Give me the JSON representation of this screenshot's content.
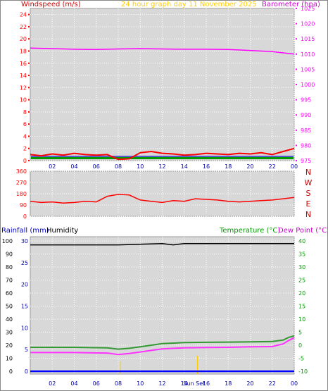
{
  "header": {
    "windspeed": "Windspeed (m/s)",
    "title": "24 hour graph day   11 November 2025",
    "barometer": "Barometer (hpa)"
  },
  "lower_header": {
    "rainfall": "Rainfall (mm)",
    "humidity": "Humidity",
    "temperature": "Temperature (°C)",
    "dewpoint": "Dew Point (°C)"
  },
  "colors": {
    "wind": "#ff0000",
    "gust_band": "#0000cc",
    "avg_band": "#009900",
    "pressure": "#ff00ff",
    "direction": "#ff0000",
    "rain": "#0000ff",
    "humidity": "#000000",
    "temperature": "#339933",
    "dewpoint": "#ff33ff",
    "axis_rain": "#0000aa",
    "axis_temp": "#009900",
    "sun": "#ffcc00"
  },
  "chart_data": [
    {
      "type": "line",
      "panel": "wind-pressure",
      "x_labels": [
        "02",
        "04",
        "06",
        "08",
        "10",
        "12",
        "14",
        "16",
        "18",
        "20",
        "22",
        "00"
      ],
      "left_axis": {
        "label": "Windspeed (m/s)",
        "range": [
          0,
          25
        ],
        "ticks": [
          0,
          2,
          4,
          6,
          8,
          10,
          12,
          14,
          16,
          18,
          20,
          22,
          24
        ]
      },
      "right_axis": {
        "label": "Barometer (hpa)",
        "range": [
          975,
          1025
        ],
        "ticks": [
          975,
          980,
          985,
          990,
          995,
          1000,
          1005,
          1010,
          1015,
          1020,
          1025
        ]
      },
      "series": [
        {
          "name": "Windspeed (m/s)",
          "axis": "left",
          "x": [
            0,
            1,
            2,
            3,
            4,
            5,
            6,
            7,
            8,
            9,
            10,
            11,
            12,
            13,
            14,
            15,
            16,
            17,
            18,
            19,
            20,
            21,
            22,
            23,
            24
          ],
          "y": [
            1.0,
            0.8,
            1.1,
            0.9,
            1.2,
            1.0,
            0.9,
            1.0,
            0.2,
            0.3,
            1.3,
            1.5,
            1.2,
            1.1,
            0.9,
            1.0,
            1.2,
            1.1,
            1.0,
            1.2,
            1.1,
            1.3,
            1.0,
            1.5,
            2.0
          ]
        },
        {
          "name": "Barometer (hpa)",
          "axis": "right",
          "x": [
            0,
            2,
            4,
            6,
            8,
            10,
            12,
            14,
            16,
            18,
            20,
            22,
            24
          ],
          "y": [
            1012.0,
            1011.8,
            1011.6,
            1011.5,
            1011.7,
            1011.8,
            1011.7,
            1011.6,
            1011.6,
            1011.5,
            1011.2,
            1010.8,
            1010.0
          ]
        }
      ]
    },
    {
      "type": "line",
      "panel": "wind-direction",
      "left_axis": {
        "range": [
          0,
          360
        ],
        "ticks": [
          0,
          90,
          180,
          270,
          360
        ]
      },
      "right_labels": [
        "N",
        "W",
        "S",
        "E",
        "N"
      ],
      "series": [
        {
          "name": "Wind direction",
          "x": [
            0,
            1,
            2,
            3,
            4,
            5,
            6,
            7,
            8,
            9,
            10,
            11,
            12,
            13,
            14,
            15,
            16,
            17,
            18,
            19,
            20,
            21,
            22,
            23,
            24
          ],
          "y": [
            120,
            110,
            115,
            105,
            110,
            120,
            115,
            160,
            175,
            170,
            130,
            120,
            110,
            125,
            120,
            140,
            135,
            130,
            120,
            115,
            120,
            125,
            130,
            140,
            150
          ]
        }
      ]
    },
    {
      "type": "line",
      "panel": "temp-humidity-rain",
      "x_labels": [
        "02",
        "04",
        "06",
        "08",
        "10",
        "12",
        "14",
        "16",
        "18",
        "20",
        "22",
        "00"
      ],
      "annotations": [
        "Sun Set"
      ],
      "left_axis": {
        "label": "Humidity",
        "range": [
          0,
          100
        ],
        "ticks": [
          0,
          10,
          20,
          30,
          40,
          50,
          60,
          70,
          80,
          90,
          100
        ]
      },
      "rain_axis": {
        "label": "Rainfall (mm)",
        "range": [
          0,
          30
        ],
        "ticks": [
          0,
          5,
          10,
          15,
          20,
          25,
          30
        ]
      },
      "right_axis": {
        "label": "Temperature (°C)",
        "range": [
          -10,
          40
        ],
        "ticks": [
          -10,
          -5,
          0,
          5,
          10,
          15,
          20,
          25,
          30,
          35,
          40
        ]
      },
      "series": [
        {
          "name": "Humidity",
          "axis": "left",
          "x": [
            0,
            4,
            8,
            12,
            13,
            14,
            18,
            24
          ],
          "y": [
            97,
            97,
            97,
            98,
            97,
            98,
            98,
            98
          ]
        },
        {
          "name": "Temperature (°C)",
          "axis": "right",
          "x": [
            0,
            4,
            7,
            8,
            9,
            10,
            11,
            12,
            14,
            16,
            18,
            20,
            22,
            23,
            23.5,
            24
          ],
          "y": [
            -0.8,
            -0.8,
            -1.0,
            -1.5,
            -1.2,
            -0.6,
            0.0,
            0.6,
            1.0,
            1.1,
            1.2,
            1.3,
            1.4,
            2.0,
            3.0,
            3.6
          ]
        },
        {
          "name": "Dew Point (°C)",
          "axis": "right",
          "x": [
            0,
            4,
            7,
            8,
            9,
            10,
            11,
            12,
            14,
            16,
            18,
            20,
            22,
            23,
            23.5,
            24
          ],
          "y": [
            -2.8,
            -2.8,
            -3.0,
            -3.6,
            -3.2,
            -2.6,
            -2.0,
            -1.4,
            -1.0,
            -0.9,
            -0.8,
            -0.6,
            -0.5,
            0.5,
            1.8,
            2.9
          ]
        },
        {
          "name": "Rainfall (mm)",
          "axis": "rain",
          "x": [
            0,
            24
          ],
          "y": [
            0,
            0
          ]
        }
      ]
    }
  ]
}
